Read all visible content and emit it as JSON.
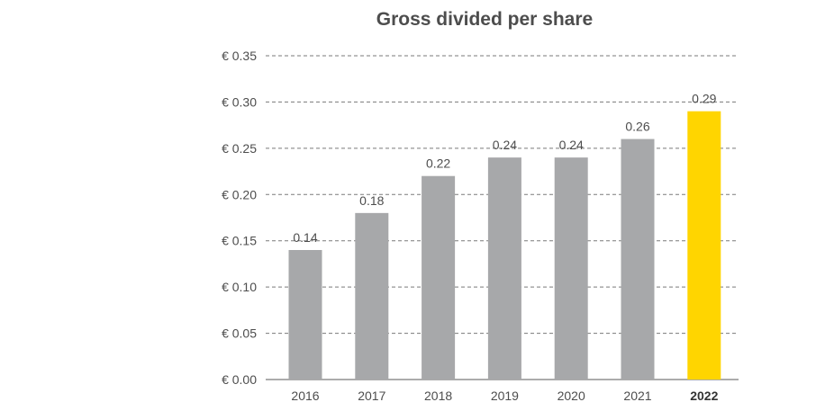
{
  "chart_data": {
    "type": "bar",
    "title": "Gross divided per share",
    "xlabel": "",
    "ylabel": "",
    "categories": [
      "2016",
      "2017",
      "2018",
      "2019",
      "2020",
      "2021",
      "2022"
    ],
    "values": [
      0.14,
      0.18,
      0.22,
      0.24,
      0.24,
      0.26,
      0.29
    ],
    "data_labels": [
      "0.14",
      "0.18",
      "0.22",
      "0.24",
      "0.24",
      "0.26",
      "0.29"
    ],
    "ylim": [
      0,
      0.35
    ],
    "yticks": [
      0,
      0.05,
      0.1,
      0.15,
      0.2,
      0.25,
      0.3,
      0.35
    ],
    "ytick_labels": [
      "€ 0.00",
      "€ 0.05",
      "€ 0.10",
      "€ 0.15",
      "€ 0.20",
      "€ 0.25",
      "€ 0.30",
      "€ 0.35"
    ],
    "grid": true,
    "highlight_category": "2022",
    "colors": {
      "bar": "#a7a8aa",
      "highlight": "#ffd500",
      "text": "#4d4d4d",
      "grid": "#7a7a7a"
    }
  }
}
